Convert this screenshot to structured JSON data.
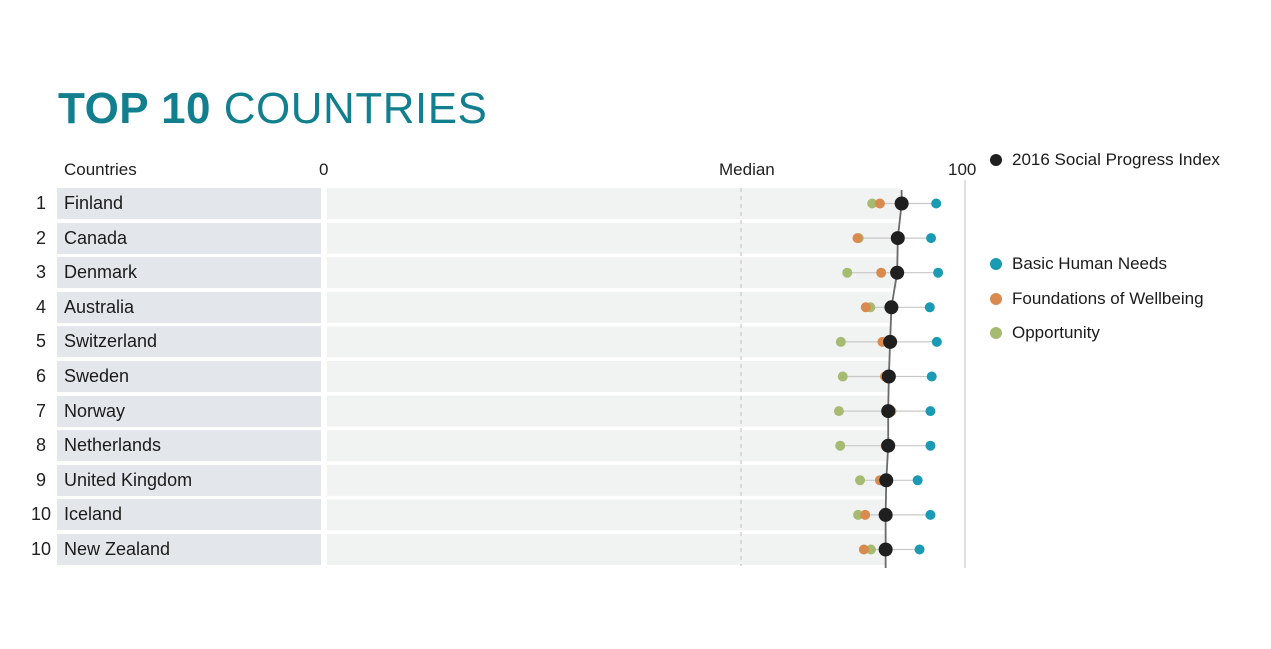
{
  "title": {
    "bold": "TOP 10",
    "light": "COUNTRIES"
  },
  "header": {
    "countries": "Countries",
    "zero": "0",
    "median": "Median",
    "hundred": "100"
  },
  "legend": {
    "index": {
      "label": "2016 Social Progress Index",
      "color": "#1f1f1f"
    },
    "bhn": {
      "label": "Basic Human Needs",
      "color": "#1b9bb3"
    },
    "fow": {
      "label": "Foundations of Wellbeing",
      "color": "#d98a4e"
    },
    "opp": {
      "label": "Opportunity",
      "color": "#a7ba72"
    }
  },
  "chart_data": {
    "type": "scatter",
    "xlim": [
      0,
      100
    ],
    "median": 65,
    "categories": [
      "Finland",
      "Canada",
      "Denmark",
      "Australia",
      "Switzerland",
      "Sweden",
      "Norway",
      "Netherlands",
      "United Kingdom",
      "Iceland",
      "New Zealand"
    ],
    "ranks": [
      "1",
      "2",
      "3",
      "4",
      "5",
      "6",
      "7",
      "8",
      "9",
      "10",
      "10"
    ],
    "series": [
      {
        "name": "2016 Social Progress Index",
        "values": [
          90.1,
          89.5,
          89.4,
          88.5,
          88.3,
          88.1,
          88.0,
          88.0,
          87.7,
          87.6,
          87.6
        ]
      },
      {
        "name": "Basic Human Needs",
        "values": [
          95.5,
          94.7,
          95.8,
          94.5,
          95.6,
          94.8,
          94.6,
          94.6,
          92.6,
          94.6,
          92.9
        ]
      },
      {
        "name": "Foundations of Wellbeing",
        "values": [
          86.7,
          83.2,
          86.9,
          84.5,
          87.1,
          87.5,
          88.5,
          87.6,
          86.7,
          84.4,
          84.2
        ]
      },
      {
        "name": "Opportunity",
        "values": [
          85.5,
          83.4,
          81.6,
          85.2,
          80.6,
          80.9,
          80.3,
          80.5,
          83.6,
          83.3,
          85.3
        ]
      }
    ]
  }
}
